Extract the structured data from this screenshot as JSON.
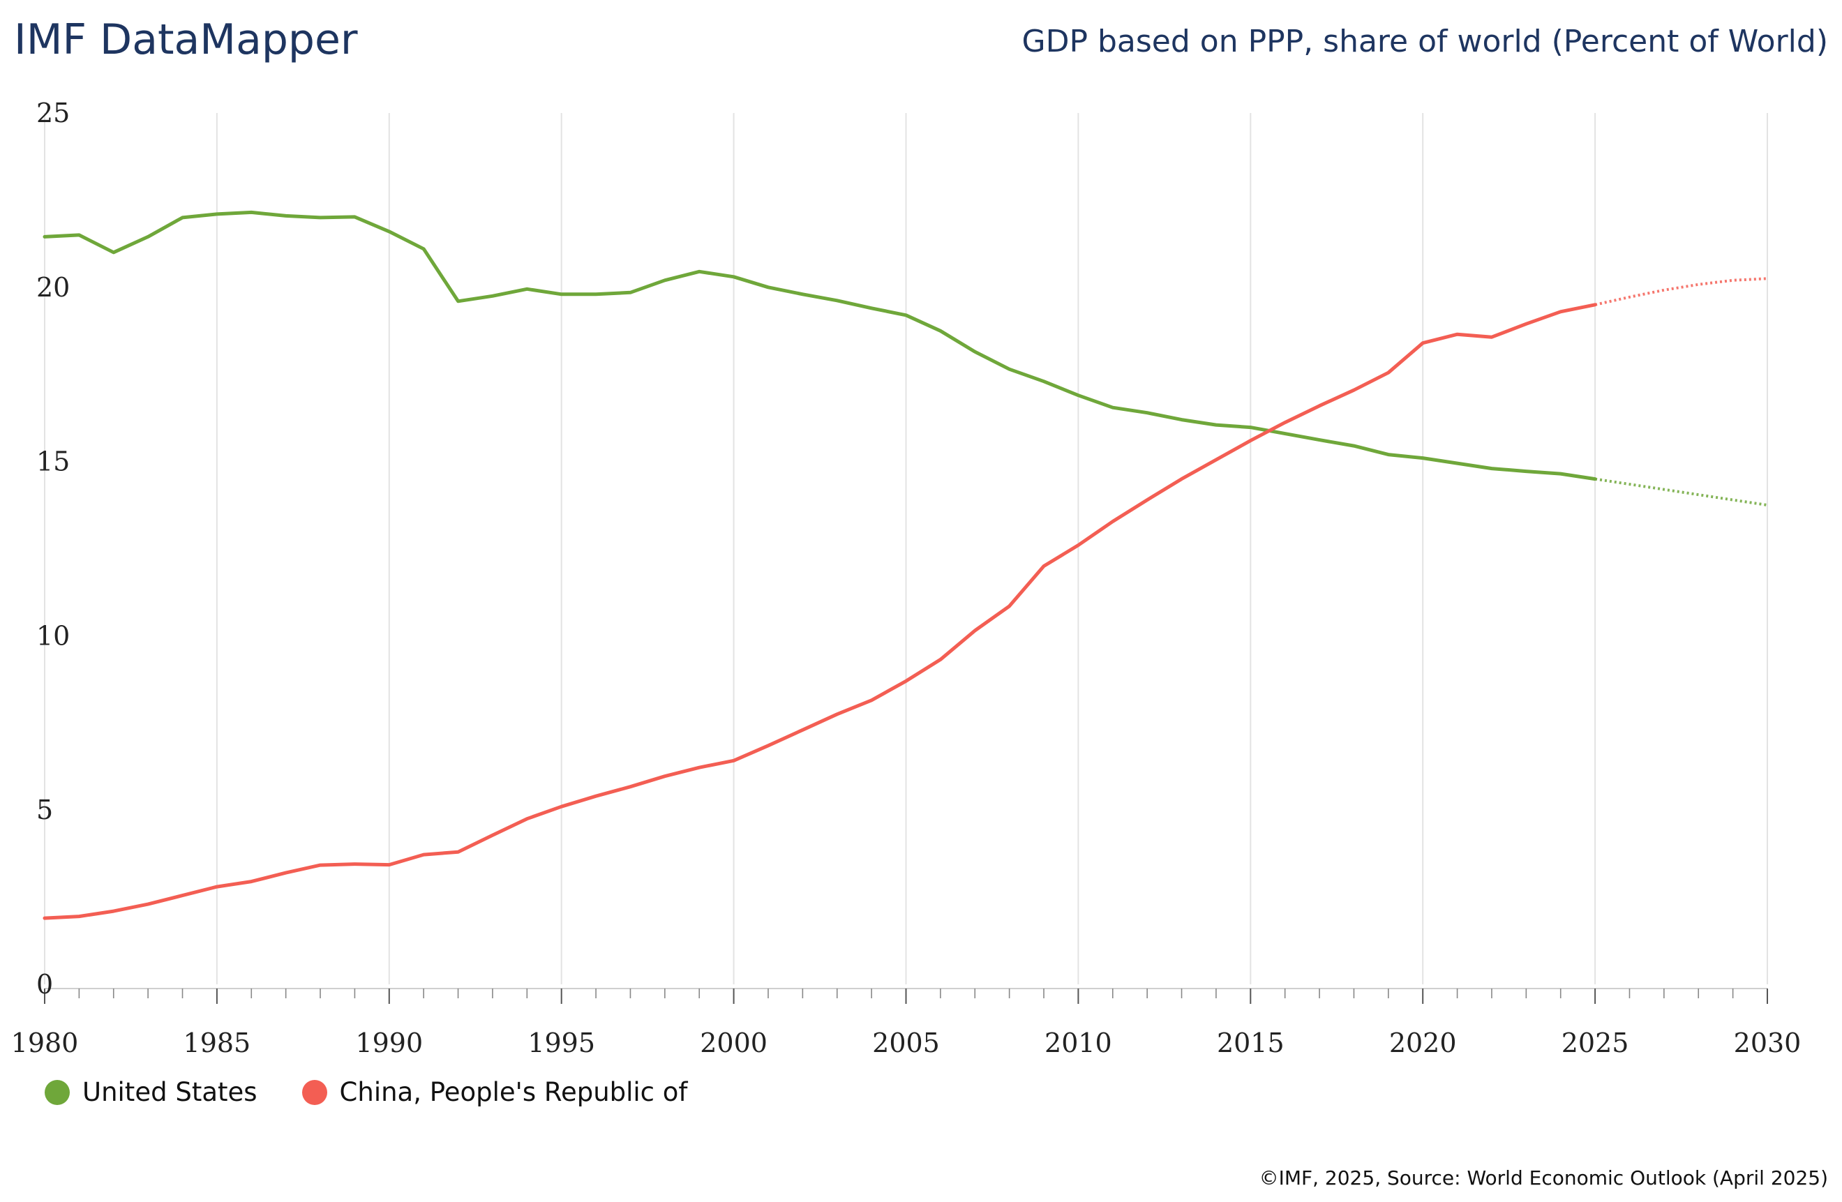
{
  "header": {
    "brand": "IMF DataMapper",
    "subtitle": "GDP based on PPP, share of world (Percent of World)"
  },
  "footer": {
    "source": "©IMF, 2025, Source: World Economic Outlook (April 2025)"
  },
  "chart_data": {
    "type": "line",
    "title": "GDP based on PPP, share of world (Percent of World)",
    "xlabel": "",
    "ylabel": "",
    "xlim": [
      1980,
      2030
    ],
    "ylim": [
      0,
      25
    ],
    "y_ticks": [
      0,
      5,
      10,
      15,
      20,
      25
    ],
    "x_ticks": [
      1980,
      1985,
      1990,
      1995,
      2000,
      2005,
      2010,
      2015,
      2020,
      2025,
      2030
    ],
    "grid": "vertical",
    "forecast_start": 2025,
    "x": [
      1980,
      1981,
      1982,
      1983,
      1984,
      1985,
      1986,
      1987,
      1988,
      1989,
      1990,
      1991,
      1992,
      1993,
      1994,
      1995,
      1996,
      1997,
      1998,
      1999,
      2000,
      2001,
      2002,
      2003,
      2004,
      2005,
      2006,
      2007,
      2008,
      2009,
      2010,
      2011,
      2012,
      2013,
      2014,
      2015,
      2016,
      2017,
      2018,
      2019,
      2020,
      2021,
      2022,
      2023,
      2024,
      2025,
      2026,
      2027,
      2028,
      2029,
      2030
    ],
    "series": [
      {
        "name": "United States",
        "color": "#6fa73a",
        "values": [
          21.45,
          21.5,
          21.0,
          21.45,
          22.0,
          22.1,
          22.15,
          22.05,
          22.0,
          22.02,
          21.6,
          21.1,
          19.6,
          19.75,
          19.95,
          19.8,
          19.8,
          19.85,
          20.2,
          20.45,
          20.3,
          20.0,
          19.8,
          19.62,
          19.4,
          19.2,
          18.75,
          18.15,
          17.65,
          17.3,
          16.9,
          16.55,
          16.4,
          16.2,
          16.05,
          15.98,
          15.8,
          15.62,
          15.45,
          15.2,
          15.1,
          14.95,
          14.8,
          14.72,
          14.65,
          14.5,
          14.35,
          14.2,
          14.05,
          13.9,
          13.75
        ]
      },
      {
        "name": "China, People's Republic of",
        "color": "#f35e53",
        "values": [
          1.9,
          1.95,
          2.1,
          2.3,
          2.55,
          2.8,
          2.95,
          3.2,
          3.42,
          3.45,
          3.43,
          3.72,
          3.8,
          4.28,
          4.75,
          5.1,
          5.4,
          5.67,
          5.97,
          6.22,
          6.42,
          6.85,
          7.3,
          7.75,
          8.15,
          8.7,
          9.32,
          10.15,
          10.85,
          12.0,
          12.6,
          13.28,
          13.9,
          14.5,
          15.05,
          15.6,
          16.12,
          16.6,
          17.05,
          17.55,
          18.4,
          18.65,
          18.57,
          18.95,
          19.3,
          19.5,
          19.72,
          19.92,
          20.08,
          20.2,
          20.25
        ]
      }
    ]
  }
}
